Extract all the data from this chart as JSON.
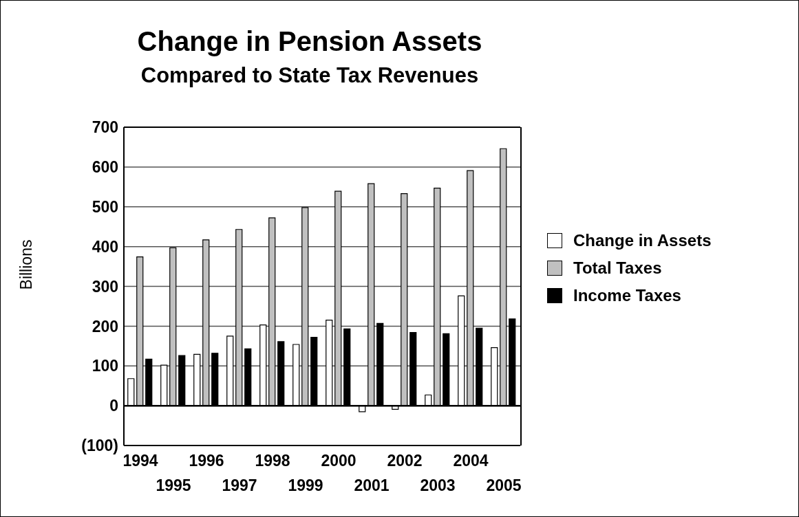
{
  "chart_data": {
    "type": "bar",
    "title": "Change in Pension Assets",
    "subtitle": "Compared to State Tax Revenues",
    "ylabel": "Billions",
    "categories": [
      "1994",
      "1995",
      "1996",
      "1997",
      "1998",
      "1999",
      "2000",
      "2001",
      "2002",
      "2003",
      "2004",
      "2005"
    ],
    "series": [
      {
        "name": "Change in Assets",
        "color": "#ffffff",
        "values": [
          68,
          102,
          129,
          175,
          203,
          154,
          215,
          -15,
          -9,
          27,
          276,
          146
        ]
      },
      {
        "name": "Total Taxes",
        "color": "#c0c0c0",
        "values": [
          374,
          397,
          417,
          443,
          472,
          498,
          539,
          558,
          533,
          547,
          591,
          646
        ]
      },
      {
        "name": "Income Taxes",
        "color": "#000000",
        "values": [
          117,
          126,
          132,
          143,
          161,
          172,
          193,
          207,
          184,
          181,
          195,
          218
        ]
      }
    ],
    "ylim": [
      -100,
      700
    ],
    "yticks": [
      {
        "value": -100,
        "label": "(100)"
      },
      0,
      100,
      200,
      300,
      400,
      500,
      600,
      700
    ],
    "grid": "y",
    "legend": "right"
  }
}
